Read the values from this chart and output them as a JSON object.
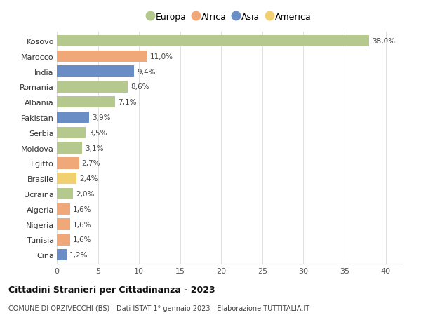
{
  "countries": [
    "Kosovo",
    "Marocco",
    "India",
    "Romania",
    "Albania",
    "Pakistan",
    "Serbia",
    "Moldova",
    "Egitto",
    "Brasile",
    "Ucraina",
    "Algeria",
    "Nigeria",
    "Tunisia",
    "Cina"
  ],
  "values": [
    38.0,
    11.0,
    9.4,
    8.6,
    7.1,
    3.9,
    3.5,
    3.1,
    2.7,
    2.4,
    2.0,
    1.6,
    1.6,
    1.6,
    1.2
  ],
  "labels": [
    "38,0%",
    "11,0%",
    "9,4%",
    "8,6%",
    "7,1%",
    "3,9%",
    "3,5%",
    "3,1%",
    "2,7%",
    "2,4%",
    "2,0%",
    "1,6%",
    "1,6%",
    "1,6%",
    "1,2%"
  ],
  "continents": [
    "Europa",
    "Africa",
    "Asia",
    "Europa",
    "Europa",
    "Asia",
    "Europa",
    "Europa",
    "Africa",
    "America",
    "Europa",
    "Africa",
    "Africa",
    "Africa",
    "Asia"
  ],
  "continent_colors": {
    "Europa": "#b5c98e",
    "Africa": "#f0a878",
    "Asia": "#6b8dc5",
    "America": "#f0d070"
  },
  "legend_order": [
    "Europa",
    "Africa",
    "Asia",
    "America"
  ],
  "title": "Cittadini Stranieri per Cittadinanza - 2023",
  "subtitle": "COMUNE DI ORZIVECCHI (BS) - Dati ISTAT 1° gennaio 2023 - Elaborazione TUTTITALIA.IT",
  "xlim": [
    0,
    42
  ],
  "xticks": [
    0,
    5,
    10,
    15,
    20,
    25,
    30,
    35,
    40
  ],
  "background_color": "#ffffff",
  "grid_color": "#e0e0e0",
  "bar_height": 0.75
}
